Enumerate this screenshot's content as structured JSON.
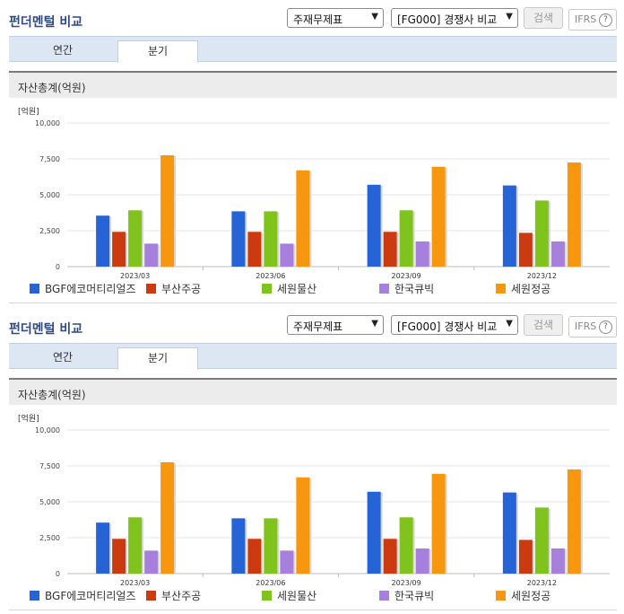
{
  "panels": [
    {
      "title": "펀더멘털 비교",
      "select_statement": "주재무제표",
      "select_compare": "[FG000] 경쟁사 비교",
      "search_label": "검색",
      "ifrs_label": "IFRS",
      "help_glyph": "?",
      "tabs": [
        "연간",
        "분기"
      ],
      "active_tab": "분기",
      "section_title": "자산총계(억원)"
    },
    {
      "title": "펀더멘털 비교",
      "select_statement": "주재무제표",
      "select_compare": "[FG000] 경쟁사 비교",
      "search_label": "검색",
      "ifrs_label": "IFRS",
      "help_glyph": "?",
      "tabs": [
        "연간",
        "분기"
      ],
      "active_tab": "분기",
      "section_title": "자산총계(억원)"
    }
  ],
  "chart_data": [
    {
      "type": "bar",
      "unit_label": "[억원]",
      "ylim": [
        0,
        10000
      ],
      "yticks": [
        "0",
        "2,500",
        "5,000",
        "7,500",
        "10,000"
      ],
      "grid": true,
      "categories": [
        "2023/03",
        "2023/06",
        "2023/09",
        "2023/12"
      ],
      "legend_position": "bottom",
      "series": [
        {
          "name": "BGF에코머티리얼즈",
          "color": "#2563d6",
          "values": [
            3550,
            3850,
            5700,
            5650
          ]
        },
        {
          "name": "부산주공",
          "color": "#cc3a10",
          "values": [
            2420,
            2420,
            2420,
            2350
          ]
        },
        {
          "name": "세원물산",
          "color": "#7fc31c",
          "values": [
            3920,
            3850,
            3920,
            4600
          ]
        },
        {
          "name": "한국큐빅",
          "color": "#a77fdc",
          "values": [
            1600,
            1600,
            1750,
            1750
          ]
        },
        {
          "name": "세원정공",
          "color": "#f7960f",
          "values": [
            7750,
            6700,
            6950,
            7250
          ]
        }
      ]
    },
    {
      "type": "bar",
      "unit_label": "[억원]",
      "ylim": [
        0,
        10000
      ],
      "yticks": [
        "0",
        "2,500",
        "5,000",
        "7,500",
        "10,000"
      ],
      "grid": true,
      "categories": [
        "2023/03",
        "2023/06",
        "2023/09",
        "2023/12"
      ],
      "legend_position": "bottom",
      "series": [
        {
          "name": "BGF에코머티리얼즈",
          "color": "#2563d6",
          "values": [
            3550,
            3850,
            5700,
            5650
          ]
        },
        {
          "name": "부산주공",
          "color": "#cc3a10",
          "values": [
            2420,
            2420,
            2420,
            2350
          ]
        },
        {
          "name": "세원물산",
          "color": "#7fc31c",
          "values": [
            3920,
            3850,
            3920,
            4600
          ]
        },
        {
          "name": "한국큐빅",
          "color": "#a77fdc",
          "values": [
            1600,
            1600,
            1750,
            1750
          ]
        },
        {
          "name": "세원정공",
          "color": "#f7960f",
          "values": [
            7750,
            6700,
            6950,
            7250
          ]
        }
      ]
    }
  ]
}
